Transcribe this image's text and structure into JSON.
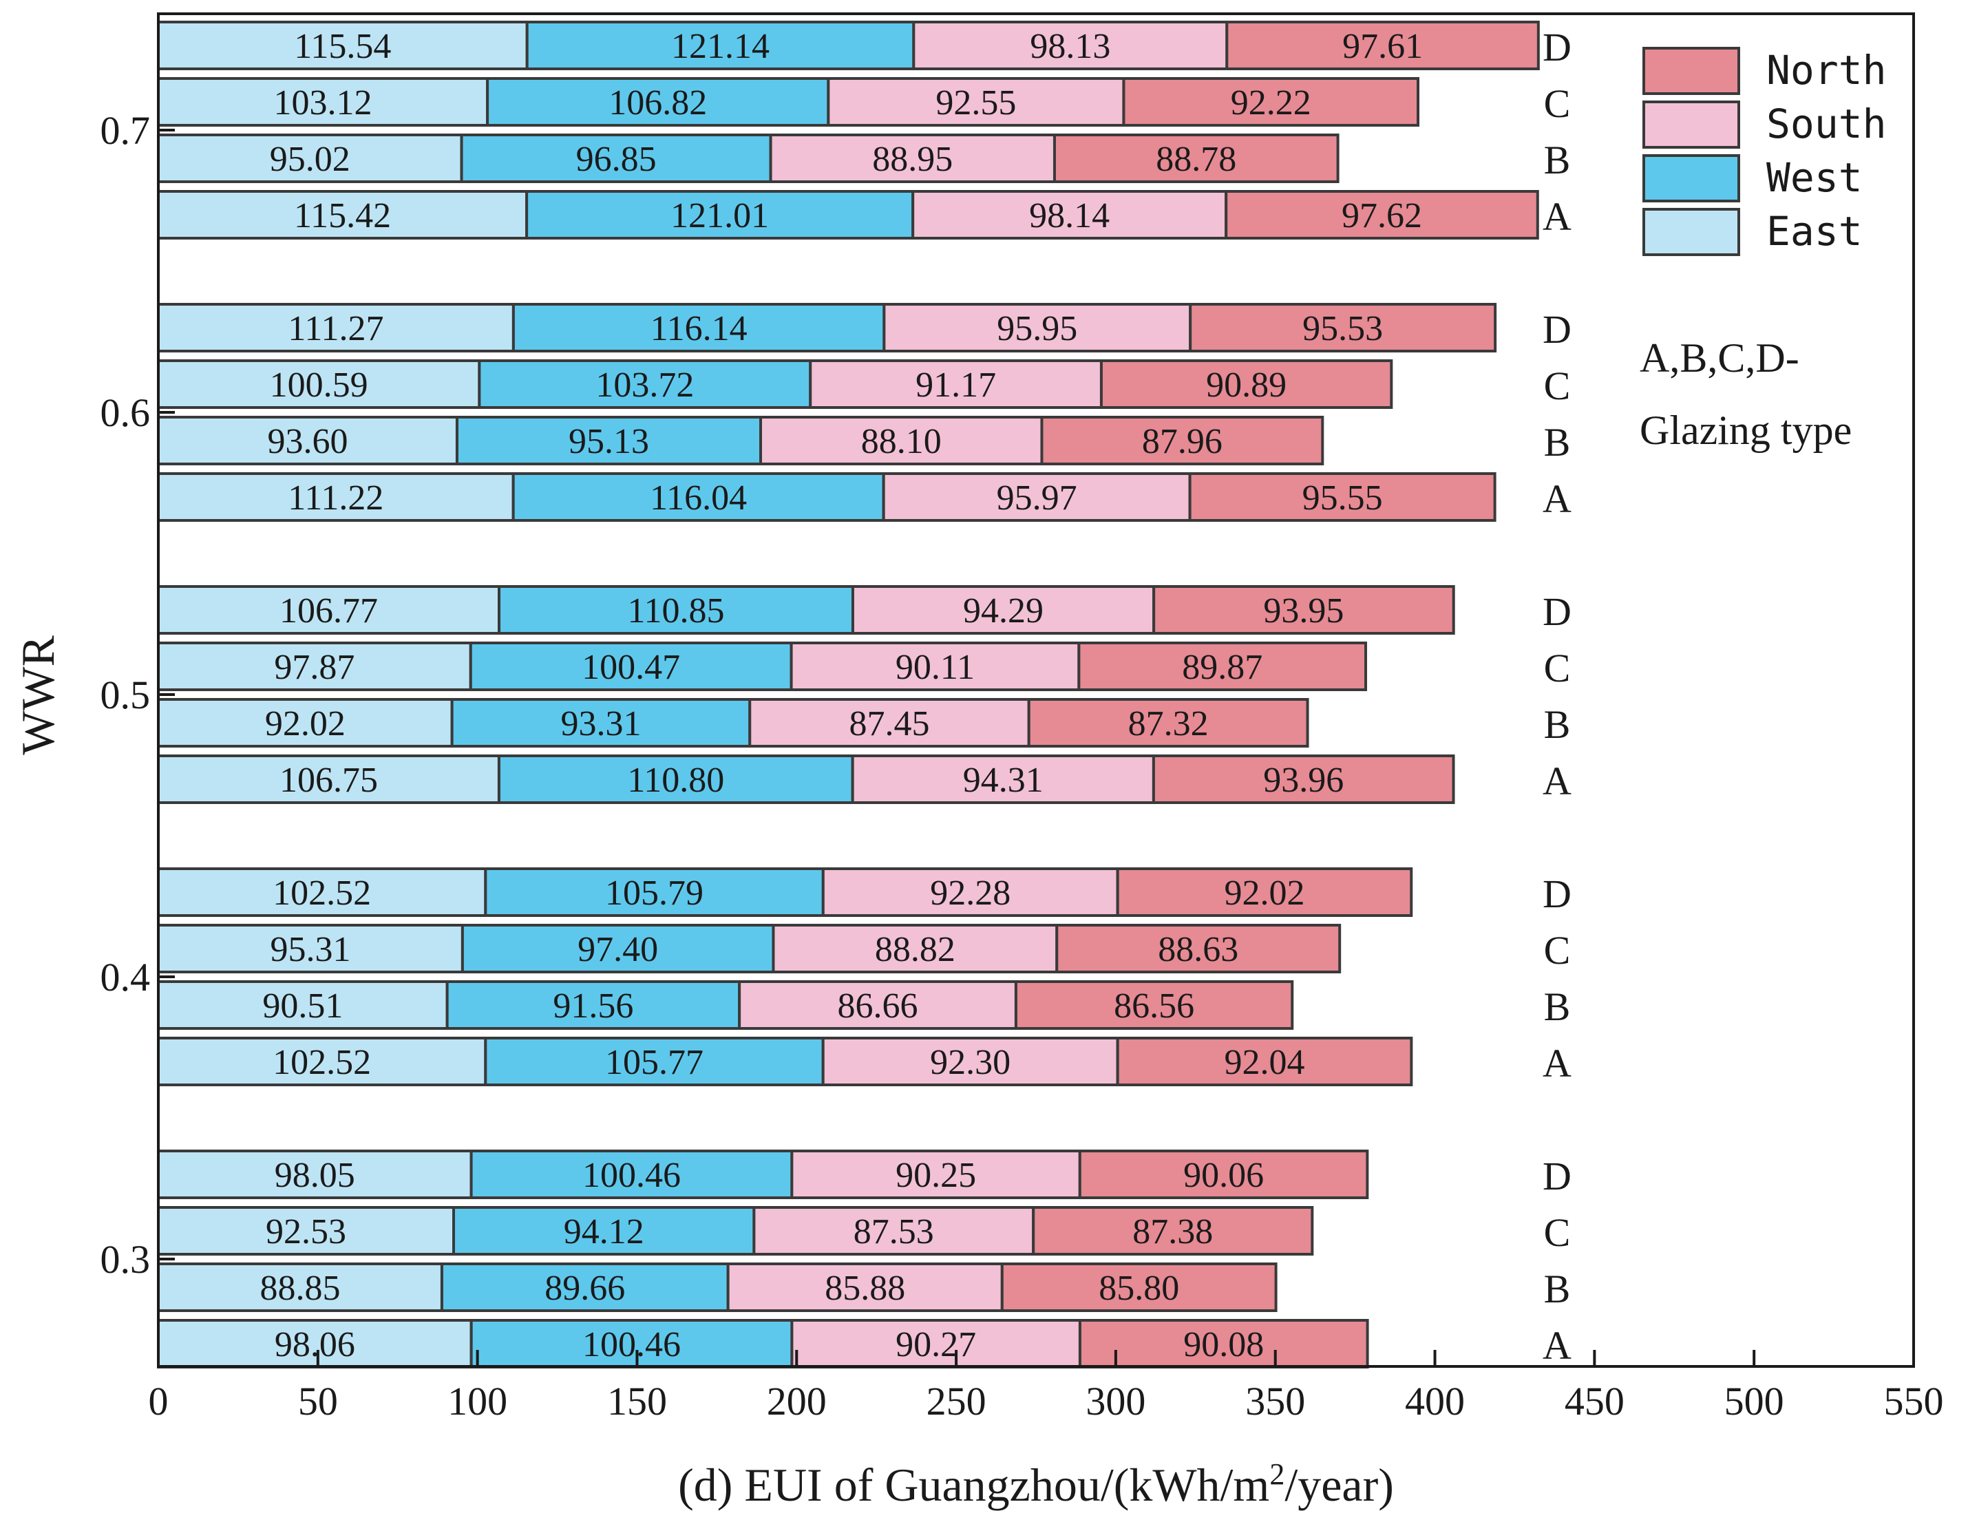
{
  "chart_data": {
    "type": "bar",
    "orientation": "horizontal",
    "stacked": true,
    "xlabel_main": "(d) EUI of Guangzhou/(kWh/m",
    "xlabel_sup": "2",
    "xlabel_tail": "/year)",
    "ylabel": "WWR",
    "xlim": [
      0,
      550
    ],
    "xticks": [
      0,
      50,
      100,
      150,
      200,
      250,
      300,
      350,
      400,
      450,
      500,
      550
    ],
    "wwr_groups": [
      "0.3",
      "0.4",
      "0.5",
      "0.6",
      "0.7"
    ],
    "glazing_types": [
      "A",
      "B",
      "C",
      "D"
    ],
    "series": [
      {
        "name": "East",
        "color": "#bde4f4"
      },
      {
        "name": "West",
        "color": "#5ec8ec"
      },
      {
        "name": "South",
        "color": "#f2c1d5"
      },
      {
        "name": "North",
        "color": "#e68a94"
      }
    ],
    "values": {
      "0.3": {
        "A": [
          "98.06",
          "100.46",
          "90.27",
          "90.08"
        ],
        "B": [
          "88.85",
          "89.66",
          "85.88",
          "85.80"
        ],
        "C": [
          "92.53",
          "94.12",
          "87.53",
          "87.38"
        ],
        "D": [
          "98.05",
          "100.46",
          "90.25",
          "90.06"
        ]
      },
      "0.4": {
        "A": [
          "102.52",
          "105.77",
          "92.30",
          "92.04"
        ],
        "B": [
          "90.51",
          "91.56",
          "86.66",
          "86.56"
        ],
        "C": [
          "95.31",
          "97.40",
          "88.82",
          "88.63"
        ],
        "D": [
          "102.52",
          "105.79",
          "92.28",
          "92.02"
        ]
      },
      "0.5": {
        "A": [
          "106.75",
          "110.80",
          "94.31",
          "93.96"
        ],
        "B": [
          "92.02",
          "93.31",
          "87.45",
          "87.32"
        ],
        "C": [
          "97.87",
          "100.47",
          "90.11",
          "89.87"
        ],
        "D": [
          "106.77",
          "110.85",
          "94.29",
          "93.95"
        ]
      },
      "0.6": {
        "A": [
          "111.22",
          "116.04",
          "95.97",
          "95.55"
        ],
        "B": [
          "93.60",
          "95.13",
          "88.10",
          "87.96"
        ],
        "C": [
          "100.59",
          "103.72",
          "91.17",
          "90.89"
        ],
        "D": [
          "111.27",
          "116.14",
          "95.95",
          "95.53"
        ]
      },
      "0.7": {
        "A": [
          "115.42",
          "121.01",
          "98.14",
          "97.62"
        ],
        "B": [
          "95.02",
          "96.85",
          "88.95",
          "88.78"
        ],
        "C": [
          "103.12",
          "106.82",
          "92.55",
          "92.22"
        ],
        "D": [
          "115.54",
          "121.14",
          "98.13",
          "97.61"
        ]
      }
    },
    "legend": {
      "placement": "top-right",
      "entries": [
        "North",
        "South",
        "West",
        "East"
      ]
    },
    "annotation": {
      "line1": "A,B,C,D-",
      "line2": "Glazing type"
    }
  }
}
